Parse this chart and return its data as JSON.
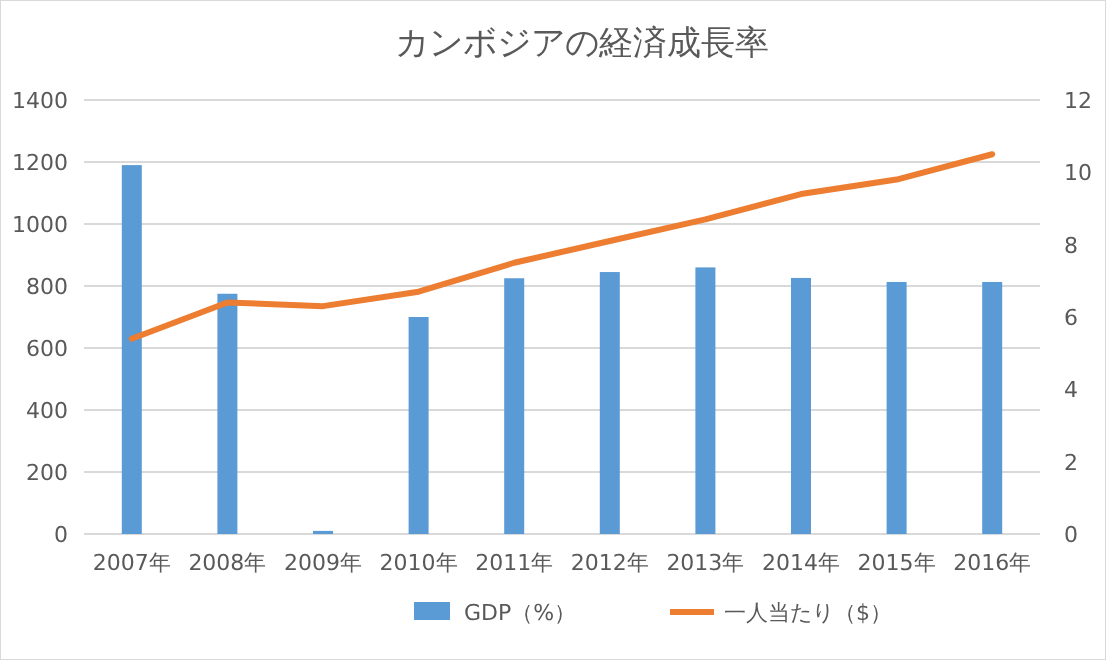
{
  "chart_data": {
    "type": "bar",
    "title": "カンボジアの経済成長率",
    "categories": [
      "2007年",
      "2008年",
      "2009年",
      "2010年",
      "2011年",
      "2012年",
      "2013年",
      "2014年",
      "2015年",
      "2016年"
    ],
    "series": [
      {
        "name": "GDP（%）",
        "color": "#5b9bd5",
        "values": [
          1190,
          775,
          10,
          700,
          825,
          845,
          860,
          826,
          813,
          813
        ]
      },
      {
        "name": "一人当たり（$）",
        "type": "line",
        "axis": "y2",
        "color": "#ed7d31",
        "values": [
          5.4,
          6.4,
          6.3,
          6.7,
          7.5,
          8.1,
          8.7,
          9.4,
          9.8,
          10.5
        ]
      }
    ],
    "ylim": [
      0,
      1400
    ],
    "yticks": [
      0,
      200,
      400,
      600,
      800,
      1000,
      1200,
      1400
    ],
    "y2lim": [
      0,
      12
    ],
    "y2ticks": [
      0,
      2,
      4,
      6,
      8,
      10,
      12
    ],
    "grid": "y",
    "legend": "bottom"
  }
}
